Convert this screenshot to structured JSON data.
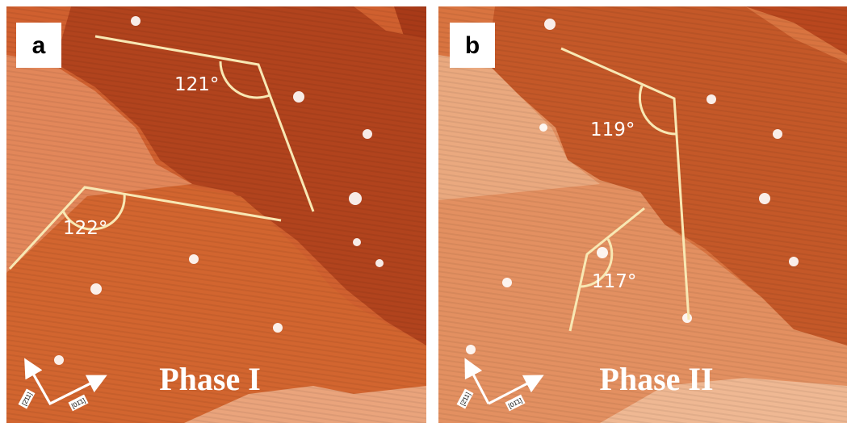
{
  "panels": [
    {
      "label": "a",
      "title": "Phase I",
      "angles": [
        "121°",
        "122°"
      ],
      "directions": [
        "[2̄11]",
        "[01̄1]"
      ]
    },
    {
      "label": "b",
      "title": "Phase II",
      "angles": [
        "119°",
        "117°"
      ],
      "directions": [
        "[2̄11]",
        "[01̄1]"
      ]
    }
  ]
}
